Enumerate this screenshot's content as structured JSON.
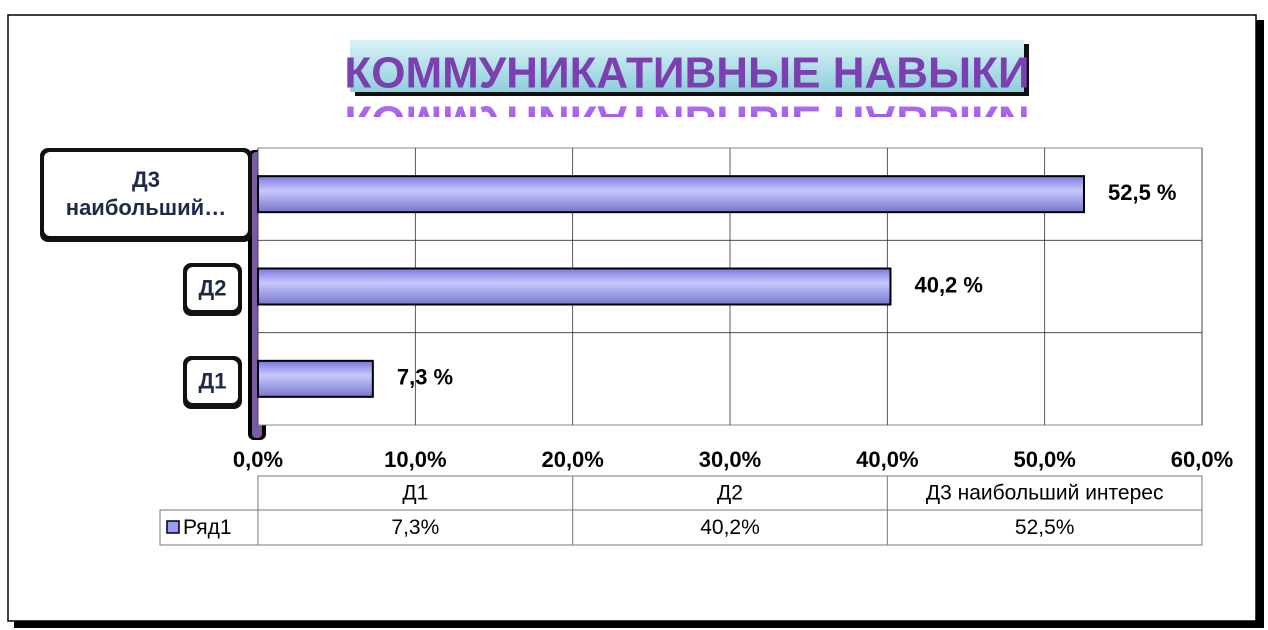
{
  "chart_data": {
    "type": "bar",
    "orientation": "horizontal",
    "title": "КОММУНИКАТИВНЫЕ НАВЫКИ",
    "categories": [
      "Д1",
      "Д2",
      "Д3 наибольший интерес"
    ],
    "axis_labels": [
      "Д1",
      "Д2",
      "Д3 наибольший…"
    ],
    "series": [
      {
        "name": "Ряд1",
        "color": "#9999ff",
        "values": [
          7.3,
          40.2,
          52.5
        ],
        "value_labels": [
          "7,3 %",
          "40,2 %",
          "52,5 %"
        ],
        "table_labels": [
          "7,3%",
          "40,2%",
          "52,5%"
        ]
      }
    ],
    "xlim": [
      0,
      60
    ],
    "xticks": [
      {
        "value": 0,
        "label": "0,0%"
      },
      {
        "value": 10,
        "label": "10,0%"
      },
      {
        "value": 20,
        "label": "20,0%"
      },
      {
        "value": 30,
        "label": "30,0%"
      },
      {
        "value": 40,
        "label": "40,0%"
      },
      {
        "value": 50,
        "label": "50,0%"
      },
      {
        "value": 60,
        "label": "60,0%"
      }
    ],
    "grid": true,
    "data_table": true
  }
}
